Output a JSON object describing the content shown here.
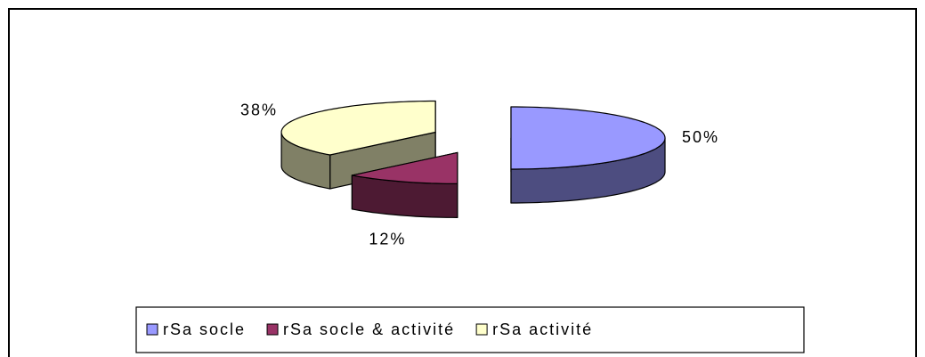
{
  "chart_data": {
    "type": "pie",
    "categories": [
      "rSa socle",
      "rSa socle & activité",
      "rSa activité"
    ],
    "values": [
      50,
      12,
      38
    ],
    "value_labels": [
      "50%",
      "12%",
      "38%"
    ],
    "colors": [
      "#9999ff",
      "#993366",
      "#ffffcc"
    ],
    "legend": "bottom"
  }
}
